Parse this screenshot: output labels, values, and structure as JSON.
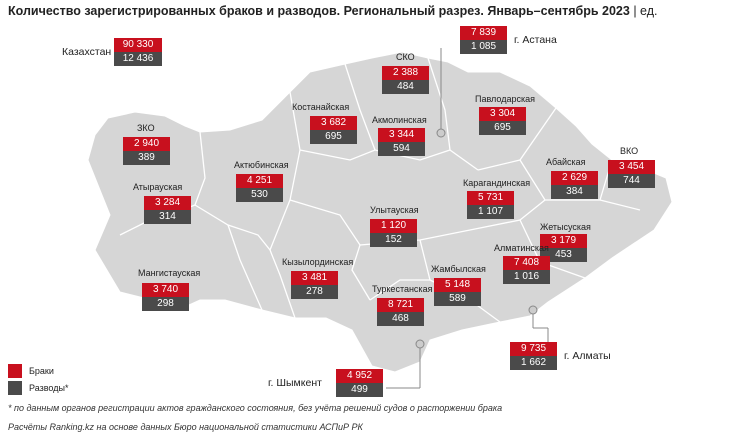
{
  "title": "Количество зарегистрированных браков и разводов. Региональный разрез. Январь–сентябрь 2023",
  "unit": "ед.",
  "legend": {
    "marriages_label": "Браки",
    "divorces_label": "Разводы*",
    "marriages_color": "#c8101e",
    "divorces_color": "#4a4a4a"
  },
  "regions": [
    {
      "id": "kazakhstan",
      "name": "Казахстан",
      "marriages": "90 330",
      "divorces": "12 436"
    },
    {
      "id": "astana",
      "name": "г. Астана",
      "marriages": "7 839",
      "divorces": "1 085"
    },
    {
      "id": "sko",
      "name": "СКО",
      "marriages": "2 388",
      "divorces": "484"
    },
    {
      "id": "kostanay",
      "name": "Костанайская",
      "marriages": "3 682",
      "divorces": "695"
    },
    {
      "id": "akmola",
      "name": "Акмолинская",
      "marriages": "3 344",
      "divorces": "594"
    },
    {
      "id": "pavlodar",
      "name": "Павлодарская",
      "marriages": "3 304",
      "divorces": "695"
    },
    {
      "id": "zko",
      "name": "ЗКО",
      "marriages": "2 940",
      "divorces": "389"
    },
    {
      "id": "aktobe",
      "name": "Актюбинская",
      "marriages": "4 251",
      "divorces": "530"
    },
    {
      "id": "atyrau",
      "name": "Атырауская",
      "marriages": "3 284",
      "divorces": "314"
    },
    {
      "id": "abai",
      "name": "Абайская",
      "marriages": "2 629",
      "divorces": "384"
    },
    {
      "id": "vko",
      "name": "ВКО",
      "marriages": "3 454",
      "divorces": "744"
    },
    {
      "id": "karaganda",
      "name": "Карагандинская",
      "marriages": "5 731",
      "divorces": "1 107"
    },
    {
      "id": "ulytau",
      "name": "Улытауская",
      "marriages": "1 120",
      "divorces": "152"
    },
    {
      "id": "zhetysu",
      "name": "Жетысуская",
      "marriages": "3 179",
      "divorces": "453"
    },
    {
      "id": "almaty_region",
      "name": "Алматинская",
      "marriages": "7 408",
      "divorces": "1 016"
    },
    {
      "id": "mangistau",
      "name": "Мангистауская",
      "marriages": "3 740",
      "divorces": "298"
    },
    {
      "id": "kyzylorda",
      "name": "Кызылординская",
      "marriages": "3 481",
      "divorces": "278"
    },
    {
      "id": "zhambyl",
      "name": "Жамбылская",
      "marriages": "5 148",
      "divorces": "589"
    },
    {
      "id": "turkestan",
      "name": "Туркестанская",
      "marriages": "8 721",
      "divorces": "468"
    },
    {
      "id": "almaty",
      "name": "г. Алматы",
      "marriages": "9 735",
      "divorces": "1 662"
    },
    {
      "id": "shymkent",
      "name": "г. Шымкент",
      "marriages": "4 952",
      "divorces": "499"
    }
  ],
  "footnote": "* по данным органов регистрации актов гражданского состояния, без учёта решений судов о расторжении брака",
  "source": "Расчёты Ranking.kz на основе данных Бюро национальной статистики АСПиР РК"
}
